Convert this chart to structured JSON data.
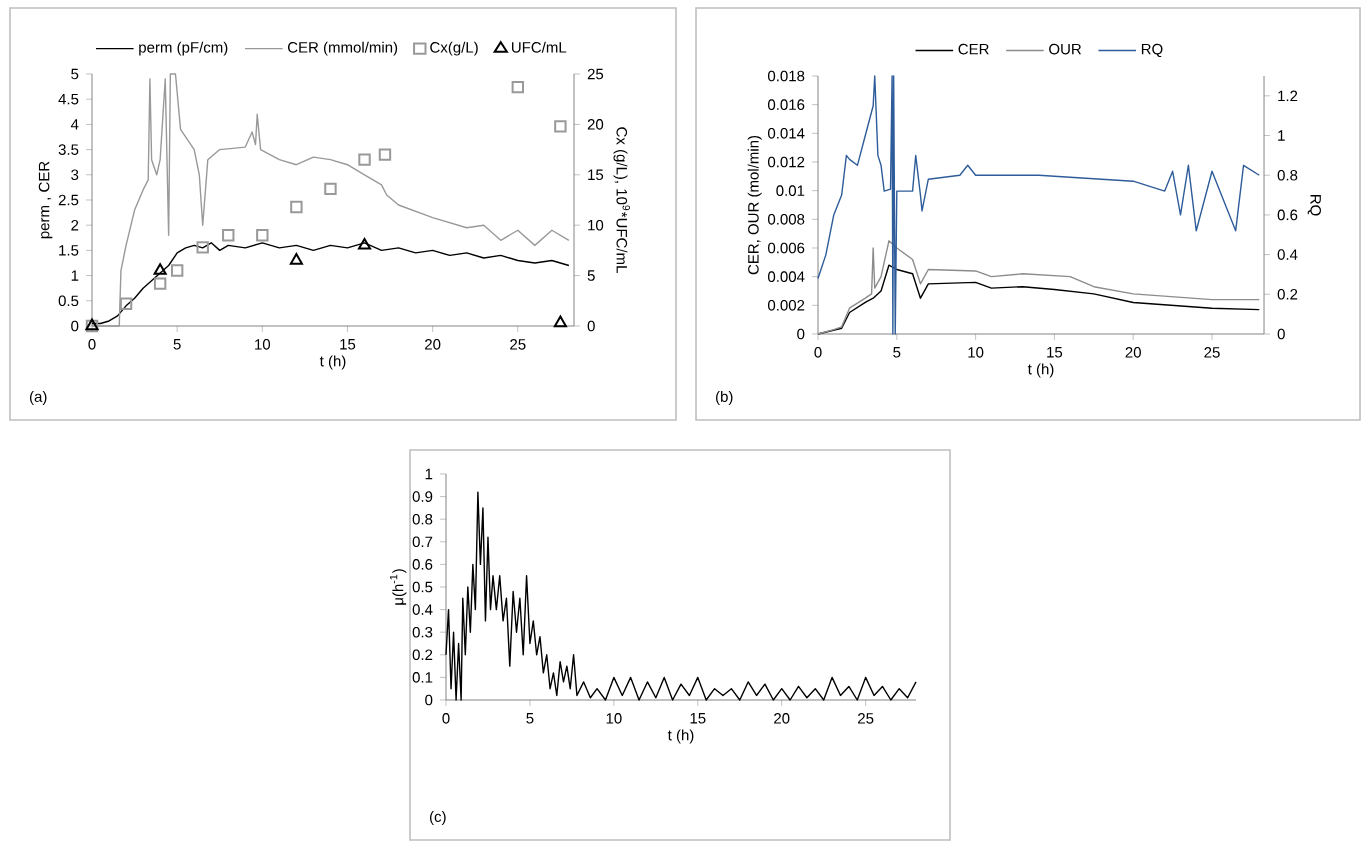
{
  "chart_data": [
    {
      "type": "line",
      "xlabel": "t (h)",
      "ylabel": "perm , CER",
      "y2label": "Cx (g/L), 10$^{9}$*UFC/mL",
      "annotations": [
        "(a)"
      ],
      "legend": "top",
      "xlim": [
        0,
        28.3
      ],
      "xticks": [
        0,
        5,
        10,
        15,
        20,
        25
      ],
      "ylim": [
        0,
        5
      ],
      "yticks": [
        0,
        0.5,
        1,
        1.5,
        2,
        2.5,
        3,
        3.5,
        4,
        4.5,
        5
      ],
      "y2lim": [
        0,
        25
      ],
      "y2ticks": [
        0,
        5,
        10,
        15,
        20,
        25
      ],
      "series": [
        {
          "name": "perm (pF/cm)",
          "type": "line",
          "color": "#000000",
          "x": [
            0,
            0.5,
            1,
            1.5,
            2,
            2.5,
            3,
            3.5,
            4,
            4.5,
            5,
            5.5,
            6,
            6.5,
            7,
            7.5,
            8,
            9,
            10,
            11,
            12,
            13,
            14,
            15,
            16,
            17,
            18,
            19,
            20,
            21,
            22,
            23,
            24,
            25,
            26,
            27,
            28
          ],
          "values": [
            0.05,
            0.05,
            0.1,
            0.2,
            0.4,
            0.55,
            0.75,
            0.9,
            1.05,
            1.2,
            1.45,
            1.55,
            1.6,
            1.55,
            1.65,
            1.5,
            1.6,
            1.55,
            1.65,
            1.55,
            1.6,
            1.5,
            1.6,
            1.55,
            1.65,
            1.5,
            1.55,
            1.45,
            1.5,
            1.4,
            1.45,
            1.35,
            1.4,
            1.3,
            1.25,
            1.3,
            1.2
          ]
        },
        {
          "name": "CER (mmol/min)",
          "type": "line",
          "color": "#999999",
          "x": [
            0,
            1.6,
            1.7,
            2,
            2.5,
            3,
            3.3,
            3.4,
            3.5,
            3.8,
            4.0,
            4.3,
            4.5,
            4.6,
            4.9,
            5.2,
            6,
            6.3,
            6.5,
            6.8,
            7.5,
            9,
            9.4,
            9.6,
            9.7,
            9.9,
            11,
            12,
            13,
            14,
            15,
            16,
            17,
            17.3,
            18,
            20,
            22,
            23,
            24,
            25,
            26,
            27,
            28
          ],
          "values": [
            0,
            0,
            1.1,
            1.6,
            2.3,
            2.7,
            2.9,
            4.9,
            3.3,
            3.0,
            3.3,
            4.9,
            1.8,
            5.0,
            5.0,
            3.9,
            3.5,
            3.0,
            2.0,
            3.3,
            3.5,
            3.55,
            3.85,
            3.6,
            4.2,
            3.5,
            3.3,
            3.2,
            3.35,
            3.3,
            3.2,
            3.0,
            2.8,
            2.6,
            2.4,
            2.15,
            1.95,
            2.0,
            1.7,
            1.9,
            1.6,
            1.9,
            1.7
          ]
        },
        {
          "name": "Cx(g/L)",
          "type": "scatter",
          "marker": "square",
          "axis": "y2",
          "color": "#999999",
          "x": [
            0,
            2,
            4,
            5,
            6.5,
            8,
            10,
            12,
            14,
            16,
            17.2,
            25,
            27.5
          ],
          "values": [
            0,
            2.2,
            4.2,
            5.5,
            7.8,
            9,
            9,
            11.8,
            13.6,
            16.5,
            17,
            23.7,
            19.8
          ]
        },
        {
          "name": "UFC/mL",
          "type": "scatter",
          "marker": "triangle",
          "axis": "y2",
          "color": "#000000",
          "x": [
            0,
            4,
            12,
            16,
            27.5
          ],
          "values": [
            0,
            5.5,
            6.5,
            8,
            0.3
          ]
        }
      ]
    },
    {
      "type": "line",
      "xlabel": "t (h)",
      "ylabel": "CER, OUR (mol/min)",
      "y2label": "RQ",
      "annotations": [
        "(b)"
      ],
      "legend": "top",
      "xlim": [
        0,
        28.3
      ],
      "xticks": [
        0,
        5,
        10,
        15,
        20,
        25
      ],
      "ylim": [
        0,
        0.018
      ],
      "yticks": [
        0,
        0.002,
        0.004,
        0.006,
        0.008,
        0.01,
        0.012,
        0.014,
        0.016,
        0.018
      ],
      "y2lim": [
        0,
        1.3
      ],
      "y2ticks": [
        0,
        0.2,
        0.4,
        0.6,
        0.8,
        1,
        1.2
      ],
      "series": [
        {
          "name": "CER",
          "color": "#000000",
          "x": [
            0,
            1.5,
            2,
            3,
            3.5,
            4,
            4.5,
            5,
            6,
            6.5,
            7,
            10,
            11,
            13,
            15,
            17.5,
            20,
            25,
            28
          ],
          "values": [
            0,
            0.0004,
            0.0015,
            0.0022,
            0.0025,
            0.003,
            0.0048,
            0.0045,
            0.0042,
            0.0025,
            0.0035,
            0.0036,
            0.0032,
            0.0033,
            0.0031,
            0.0028,
            0.0022,
            0.0018,
            0.0017
          ]
        },
        {
          "name": "OUR",
          "color": "#8c8c8c",
          "x": [
            0,
            1,
            1.5,
            2,
            3,
            3.4,
            3.5,
            3.6,
            4,
            4.5,
            5,
            6,
            6.5,
            7,
            10,
            11,
            13,
            16,
            17.5,
            20,
            25,
            28
          ],
          "values": [
            0,
            0.0003,
            0.0005,
            0.0018,
            0.0025,
            0.0028,
            0.006,
            0.0032,
            0.004,
            0.0065,
            0.006,
            0.0052,
            0.0035,
            0.0045,
            0.0044,
            0.004,
            0.0042,
            0.004,
            0.0033,
            0.0028,
            0.0024,
            0.0024
          ]
        },
        {
          "name": "RQ",
          "axis": "y2",
          "color": "#2e5c9a",
          "x": [
            0,
            0.5,
            1,
            1.5,
            1.8,
            2,
            2.5,
            3,
            3.5,
            3.6,
            3.8,
            4,
            4.2,
            4.6,
            4.7,
            4.75,
            4.8,
            4.9,
            5,
            6,
            6.2,
            6.5,
            6.6,
            7,
            9,
            9.5,
            10,
            14,
            18,
            20,
            22,
            22.5,
            23,
            23.5,
            24,
            25,
            26.5,
            27,
            28
          ],
          "values": [
            0.28,
            0.4,
            0.6,
            0.7,
            0.9,
            0.88,
            0.85,
            1.0,
            1.15,
            1.3,
            0.9,
            0.85,
            0.72,
            0.73,
            1.3,
            0,
            1.3,
            0,
            0.72,
            0.72,
            0.9,
            0.7,
            0.62,
            0.78,
            0.8,
            0.85,
            0.8,
            0.8,
            0.78,
            0.77,
            0.72,
            0.82,
            0.6,
            0.85,
            0.52,
            0.82,
            0.52,
            0.85,
            0.8
          ]
        }
      ]
    },
    {
      "type": "line",
      "xlabel": "t (h)",
      "ylabel": "μ(h$^{-1}$)",
      "annotations": [
        "(c)"
      ],
      "xlim": [
        0,
        28
      ],
      "xticks": [
        0,
        5,
        10,
        15,
        20,
        25
      ],
      "ylim": [
        0,
        1
      ],
      "yticks": [
        0,
        0.1,
        0.2,
        0.3,
        0.4,
        0.5,
        0.6,
        0.7,
        0.8,
        0.9,
        1
      ],
      "series": [
        {
          "color": "#000000",
          "x": [
            0,
            0.15,
            0.3,
            0.45,
            0.6,
            0.75,
            0.9,
            1.0,
            1.15,
            1.3,
            1.45,
            1.6,
            1.75,
            1.9,
            2.05,
            2.2,
            2.35,
            2.5,
            2.65,
            2.8,
            3.0,
            3.2,
            3.4,
            3.6,
            3.8,
            4.0,
            4.2,
            4.4,
            4.6,
            4.8,
            5.0,
            5.2,
            5.4,
            5.6,
            5.8,
            6.0,
            6.2,
            6.4,
            6.6,
            6.8,
            7.0,
            7.2,
            7.4,
            7.6,
            7.8,
            8.2,
            8.6,
            9.0,
            9.5,
            10,
            10.5,
            11,
            11.5,
            12,
            12.5,
            13,
            13.5,
            14,
            14.5,
            15,
            15.5,
            16,
            16.5,
            17,
            17.5,
            18,
            18.5,
            19,
            19.5,
            20,
            20.5,
            21,
            21.5,
            22,
            22.5,
            23,
            23.5,
            24,
            24.5,
            25,
            25.5,
            26,
            26.5,
            27,
            27.5,
            28
          ],
          "values": [
            0.2,
            0.4,
            0.05,
            0.3,
            0,
            0.25,
            0,
            0.45,
            0.2,
            0.5,
            0.3,
            0.6,
            0.4,
            0.92,
            0.6,
            0.85,
            0.35,
            0.72,
            0.4,
            0.55,
            0.4,
            0.55,
            0.35,
            0.45,
            0.15,
            0.48,
            0.3,
            0.45,
            0.2,
            0.55,
            0.25,
            0.35,
            0.2,
            0.28,
            0.12,
            0.2,
            0.05,
            0.12,
            0.02,
            0.17,
            0.08,
            0.15,
            0.05,
            0.2,
            0.02,
            0.08,
            0.01,
            0.05,
            0,
            0.1,
            0.02,
            0.1,
            0,
            0.08,
            0.01,
            0.1,
            0,
            0.07,
            0.02,
            0.1,
            0,
            0.05,
            0.02,
            0.05,
            0,
            0.08,
            0.02,
            0.07,
            0,
            0.05,
            0,
            0.06,
            0.01,
            0.05,
            0,
            0.1,
            0.02,
            0.06,
            0,
            0.1,
            0.02,
            0.06,
            0,
            0.05,
            0.01,
            0.08
          ]
        }
      ]
    }
  ]
}
